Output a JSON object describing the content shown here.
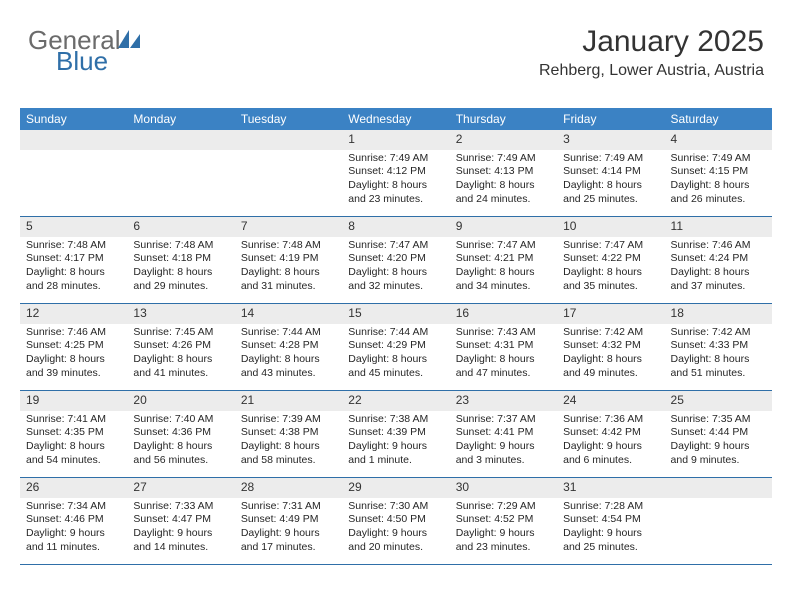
{
  "logo": {
    "text1": "General",
    "text2": "Blue"
  },
  "title": "January 2025",
  "location": "Rehberg, Lower Austria, Austria",
  "colors": {
    "header_bg": "#3b82c4",
    "header_text": "#ffffff",
    "daynum_bg": "#ececec",
    "rule": "#2f6fa8",
    "text": "#262626",
    "logo_gray": "#6b6b6b",
    "logo_blue": "#2f6fa8"
  },
  "typography": {
    "title_fontsize": 30,
    "sub_fontsize": 16,
    "dow_fontsize": 12,
    "body_fontsize": 10.5
  },
  "days_of_week": [
    "Sunday",
    "Monday",
    "Tuesday",
    "Wednesday",
    "Thursday",
    "Friday",
    "Saturday"
  ],
  "weeks": [
    [
      {
        "n": "",
        "sr": "",
        "ss": "",
        "dl": ""
      },
      {
        "n": "",
        "sr": "",
        "ss": "",
        "dl": ""
      },
      {
        "n": "",
        "sr": "",
        "ss": "",
        "dl": ""
      },
      {
        "n": "1",
        "sr": "Sunrise: 7:49 AM",
        "ss": "Sunset: 4:12 PM",
        "dl": "Daylight: 8 hours and 23 minutes."
      },
      {
        "n": "2",
        "sr": "Sunrise: 7:49 AM",
        "ss": "Sunset: 4:13 PM",
        "dl": "Daylight: 8 hours and 24 minutes."
      },
      {
        "n": "3",
        "sr": "Sunrise: 7:49 AM",
        "ss": "Sunset: 4:14 PM",
        "dl": "Daylight: 8 hours and 25 minutes."
      },
      {
        "n": "4",
        "sr": "Sunrise: 7:49 AM",
        "ss": "Sunset: 4:15 PM",
        "dl": "Daylight: 8 hours and 26 minutes."
      }
    ],
    [
      {
        "n": "5",
        "sr": "Sunrise: 7:48 AM",
        "ss": "Sunset: 4:17 PM",
        "dl": "Daylight: 8 hours and 28 minutes."
      },
      {
        "n": "6",
        "sr": "Sunrise: 7:48 AM",
        "ss": "Sunset: 4:18 PM",
        "dl": "Daylight: 8 hours and 29 minutes."
      },
      {
        "n": "7",
        "sr": "Sunrise: 7:48 AM",
        "ss": "Sunset: 4:19 PM",
        "dl": "Daylight: 8 hours and 31 minutes."
      },
      {
        "n": "8",
        "sr": "Sunrise: 7:47 AM",
        "ss": "Sunset: 4:20 PM",
        "dl": "Daylight: 8 hours and 32 minutes."
      },
      {
        "n": "9",
        "sr": "Sunrise: 7:47 AM",
        "ss": "Sunset: 4:21 PM",
        "dl": "Daylight: 8 hours and 34 minutes."
      },
      {
        "n": "10",
        "sr": "Sunrise: 7:47 AM",
        "ss": "Sunset: 4:22 PM",
        "dl": "Daylight: 8 hours and 35 minutes."
      },
      {
        "n": "11",
        "sr": "Sunrise: 7:46 AM",
        "ss": "Sunset: 4:24 PM",
        "dl": "Daylight: 8 hours and 37 minutes."
      }
    ],
    [
      {
        "n": "12",
        "sr": "Sunrise: 7:46 AM",
        "ss": "Sunset: 4:25 PM",
        "dl": "Daylight: 8 hours and 39 minutes."
      },
      {
        "n": "13",
        "sr": "Sunrise: 7:45 AM",
        "ss": "Sunset: 4:26 PM",
        "dl": "Daylight: 8 hours and 41 minutes."
      },
      {
        "n": "14",
        "sr": "Sunrise: 7:44 AM",
        "ss": "Sunset: 4:28 PM",
        "dl": "Daylight: 8 hours and 43 minutes."
      },
      {
        "n": "15",
        "sr": "Sunrise: 7:44 AM",
        "ss": "Sunset: 4:29 PM",
        "dl": "Daylight: 8 hours and 45 minutes."
      },
      {
        "n": "16",
        "sr": "Sunrise: 7:43 AM",
        "ss": "Sunset: 4:31 PM",
        "dl": "Daylight: 8 hours and 47 minutes."
      },
      {
        "n": "17",
        "sr": "Sunrise: 7:42 AM",
        "ss": "Sunset: 4:32 PM",
        "dl": "Daylight: 8 hours and 49 minutes."
      },
      {
        "n": "18",
        "sr": "Sunrise: 7:42 AM",
        "ss": "Sunset: 4:33 PM",
        "dl": "Daylight: 8 hours and 51 minutes."
      }
    ],
    [
      {
        "n": "19",
        "sr": "Sunrise: 7:41 AM",
        "ss": "Sunset: 4:35 PM",
        "dl": "Daylight: 8 hours and 54 minutes."
      },
      {
        "n": "20",
        "sr": "Sunrise: 7:40 AM",
        "ss": "Sunset: 4:36 PM",
        "dl": "Daylight: 8 hours and 56 minutes."
      },
      {
        "n": "21",
        "sr": "Sunrise: 7:39 AM",
        "ss": "Sunset: 4:38 PM",
        "dl": "Daylight: 8 hours and 58 minutes."
      },
      {
        "n": "22",
        "sr": "Sunrise: 7:38 AM",
        "ss": "Sunset: 4:39 PM",
        "dl": "Daylight: 9 hours and 1 minute."
      },
      {
        "n": "23",
        "sr": "Sunrise: 7:37 AM",
        "ss": "Sunset: 4:41 PM",
        "dl": "Daylight: 9 hours and 3 minutes."
      },
      {
        "n": "24",
        "sr": "Sunrise: 7:36 AM",
        "ss": "Sunset: 4:42 PM",
        "dl": "Daylight: 9 hours and 6 minutes."
      },
      {
        "n": "25",
        "sr": "Sunrise: 7:35 AM",
        "ss": "Sunset: 4:44 PM",
        "dl": "Daylight: 9 hours and 9 minutes."
      }
    ],
    [
      {
        "n": "26",
        "sr": "Sunrise: 7:34 AM",
        "ss": "Sunset: 4:46 PM",
        "dl": "Daylight: 9 hours and 11 minutes."
      },
      {
        "n": "27",
        "sr": "Sunrise: 7:33 AM",
        "ss": "Sunset: 4:47 PM",
        "dl": "Daylight: 9 hours and 14 minutes."
      },
      {
        "n": "28",
        "sr": "Sunrise: 7:31 AM",
        "ss": "Sunset: 4:49 PM",
        "dl": "Daylight: 9 hours and 17 minutes."
      },
      {
        "n": "29",
        "sr": "Sunrise: 7:30 AM",
        "ss": "Sunset: 4:50 PM",
        "dl": "Daylight: 9 hours and 20 minutes."
      },
      {
        "n": "30",
        "sr": "Sunrise: 7:29 AM",
        "ss": "Sunset: 4:52 PM",
        "dl": "Daylight: 9 hours and 23 minutes."
      },
      {
        "n": "31",
        "sr": "Sunrise: 7:28 AM",
        "ss": "Sunset: 4:54 PM",
        "dl": "Daylight: 9 hours and 25 minutes."
      },
      {
        "n": "",
        "sr": "",
        "ss": "",
        "dl": ""
      }
    ]
  ]
}
